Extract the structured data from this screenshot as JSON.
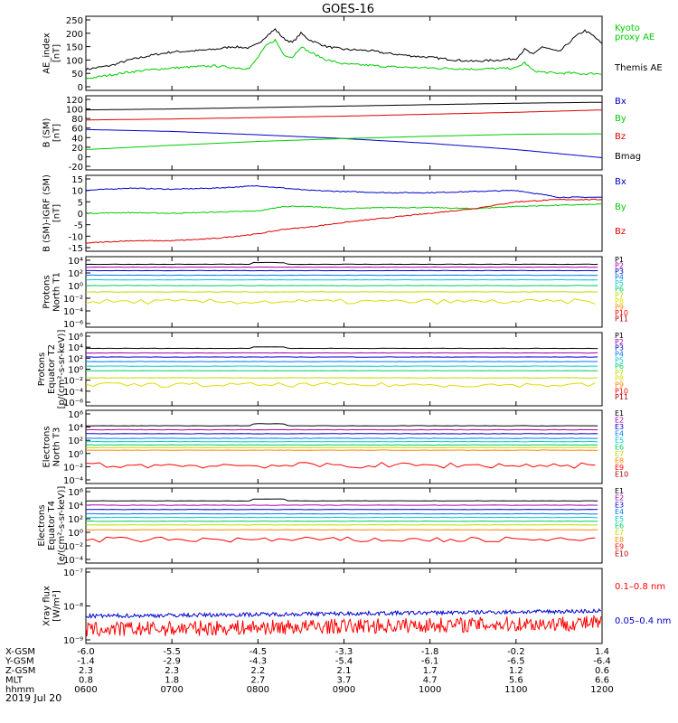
{
  "chart_data": {
    "type": "line",
    "title": "GOES-16",
    "date_label": "2019 Jul 20",
    "time_range": [
      "0600",
      "1200"
    ],
    "panels": [
      {
        "id": "ae",
        "ylabel": [
          "AE_index",
          "[nT]"
        ],
        "yticks": [
          "250",
          "200",
          "150",
          "100",
          "50",
          "0"
        ],
        "ylim": [
          0,
          250
        ],
        "legend": [
          {
            "label": "Kyoto",
            "color": "#00cc00"
          },
          {
            "label": "proxy AE",
            "color": "#00cc00"
          },
          {
            "label": "Themis AE",
            "color": "#000000"
          }
        ],
        "series": [
          {
            "name": "Themis AE",
            "color": "#000000",
            "x": [
              6.0,
              6.3,
              6.5,
              6.8,
              7.0,
              7.3,
              7.5,
              7.7,
              7.9,
              8.0,
              8.1,
              8.2,
              8.3,
              8.4,
              8.5,
              8.6,
              8.8,
              9.0,
              9.3,
              9.5,
              9.8,
              10.0,
              10.3,
              10.5,
              10.8,
              11.0,
              11.1,
              11.2,
              11.3,
              11.5,
              11.6,
              11.7,
              11.8,
              11.9,
              12.0
            ],
            "y": [
              65,
              80,
              100,
              120,
              130,
              135,
              140,
              150,
              145,
              160,
              190,
              215,
              180,
              165,
              200,
              175,
              150,
              140,
              135,
              125,
              115,
              110,
              100,
              95,
              100,
              105,
              140,
              120,
              150,
              130,
              160,
              190,
              210,
              190,
              160
            ]
          },
          {
            "name": "Kyoto proxy AE",
            "color": "#00cc00",
            "x": [
              6.0,
              6.3,
              6.5,
              6.8,
              7.0,
              7.3,
              7.5,
              7.7,
              7.9,
              8.0,
              8.1,
              8.2,
              8.3,
              8.4,
              8.5,
              8.6,
              8.8,
              9.0,
              9.3,
              9.5,
              9.8,
              10.0,
              10.3,
              10.5,
              10.8,
              11.0,
              11.1,
              11.2,
              11.3,
              11.5,
              11.6,
              11.7,
              11.8,
              11.9,
              12.0
            ],
            "y": [
              30,
              45,
              55,
              65,
              70,
              75,
              78,
              72,
              68,
              110,
              155,
              175,
              120,
              110,
              150,
              130,
              100,
              85,
              80,
              75,
              72,
              70,
              68,
              66,
              68,
              70,
              90,
              60,
              55,
              50,
              52,
              50,
              48,
              50,
              48
            ]
          }
        ]
      },
      {
        "id": "bsm",
        "ylabel": [
          "B (SM)",
          "[nT]"
        ],
        "yticks": [
          "120",
          "100",
          "80",
          "60",
          "40",
          "20",
          "0",
          "-20"
        ],
        "ylim": [
          -20,
          120
        ],
        "legend": [
          {
            "label": "Bx",
            "color": "#0000cc"
          },
          {
            "label": "By",
            "color": "#00cc00"
          },
          {
            "label": "Bz",
            "color": "#dd0000"
          },
          {
            "label": "Bmag",
            "color": "#000000"
          }
        ],
        "series": [
          {
            "name": "Bmag",
            "color": "#000000",
            "x": [
              6,
              7,
              8,
              9,
              10,
              11,
              12
            ],
            "y": [
              98,
              100,
              103,
              106,
              109,
              112,
              114
            ]
          },
          {
            "name": "Bz",
            "color": "#dd0000",
            "x": [
              6,
              7,
              8,
              9,
              10,
              11,
              12
            ],
            "y": [
              77,
              79,
              82,
              85,
              89,
              93,
              98
            ]
          },
          {
            "name": "Bx",
            "color": "#0000cc",
            "x": [
              6,
              7,
              8,
              9,
              10,
              11,
              12
            ],
            "y": [
              57,
              53,
              46,
              38,
              28,
              15,
              -2
            ]
          },
          {
            "name": "By",
            "color": "#00cc00",
            "x": [
              6,
              7,
              8,
              9,
              10,
              11,
              12
            ],
            "y": [
              15,
              24,
              32,
              38,
              43,
              47,
              48
            ]
          }
        ]
      },
      {
        "id": "bdiff",
        "ylabel": [
          "B (SM)-IGRF (SM)",
          "[nT]"
        ],
        "yticks": [
          "15",
          "10",
          "5",
          "0",
          "-5",
          "-10",
          "-15"
        ],
        "ylim": [
          -15,
          15
        ],
        "legend": [
          {
            "label": "Bx",
            "color": "#0000cc"
          },
          {
            "label": "By",
            "color": "#00cc00"
          },
          {
            "label": "Bz",
            "color": "#dd0000"
          }
        ],
        "series": [
          {
            "name": "Bx",
            "color": "#0000cc",
            "x": [
              6,
              6.5,
              7,
              7.5,
              8,
              8.3,
              8.6,
              9,
              9.5,
              10,
              10.5,
              11,
              11.5,
              12
            ],
            "y": [
              10,
              11,
              10.5,
              11,
              12,
              11,
              10,
              9.5,
              9,
              9,
              9.5,
              10,
              7,
              7
            ]
          },
          {
            "name": "By",
            "color": "#00cc00",
            "x": [
              6,
              6.5,
              7,
              7.5,
              8,
              8.3,
              8.6,
              9,
              9.5,
              10,
              10.5,
              11,
              11.5,
              12
            ],
            "y": [
              0,
              0.3,
              0,
              0.5,
              1,
              3,
              3,
              2,
              2.5,
              2.5,
              2,
              3,
              3.5,
              4
            ]
          },
          {
            "name": "Bz",
            "color": "#dd0000",
            "x": [
              6,
              6.5,
              7,
              7.5,
              8,
              8.3,
              8.6,
              9,
              9.5,
              10,
              10.5,
              11,
              11.5,
              12
            ],
            "y": [
              -13,
              -12,
              -12,
              -11,
              -9,
              -7,
              -6,
              -4,
              -2,
              0,
              2,
              5,
              6,
              6
            ]
          }
        ]
      },
      {
        "id": "pt1",
        "ylabel": [
          "Protons",
          "North T1"
        ],
        "yticks": [
          "10⁴",
          "10²",
          "10⁰",
          "10⁻²",
          "10⁻⁴",
          "10⁻⁶"
        ],
        "ylim_log": [
          -7,
          4
        ],
        "legend": [
          {
            "label": "P1",
            "color": "#000000"
          },
          {
            "label": "P2",
            "color": "#aa00aa"
          },
          {
            "label": "P3",
            "color": "#0000cc"
          },
          {
            "label": "P4",
            "color": "#0077ff"
          },
          {
            "label": "P5",
            "color": "#00cccc"
          },
          {
            "label": "P6",
            "color": "#00cc66"
          },
          {
            "label": "P7",
            "color": "#bbdd00"
          },
          {
            "label": "P8",
            "color": "#dddd00"
          },
          {
            "label": "P9",
            "color": "#ff8800"
          },
          {
            "label": "P10",
            "color": "#ff0000"
          },
          {
            "label": "P11",
            "color": "#aa0000"
          }
        ],
        "levels_log10": [
          3.3,
          2.8,
          2.2,
          1.4,
          0.6,
          -0.4,
          -1.5,
          -3.2
        ]
      },
      {
        "id": "pt2",
        "ylabel": [
          "Protons",
          "Equator T2",
          "[p/(cm²-s-sr-keV)]"
        ],
        "yticks": [
          "10⁶",
          "10⁴",
          "10²",
          "10⁰",
          "10⁻²",
          "10⁻⁴",
          "10⁻⁶"
        ],
        "ylim_log": [
          -7,
          6
        ],
        "legend": [
          {
            "label": "P1",
            "color": "#000000"
          },
          {
            "label": "P2",
            "color": "#aa00aa"
          },
          {
            "label": "P3",
            "color": "#0000cc"
          },
          {
            "label": "P4",
            "color": "#0077ff"
          },
          {
            "label": "P5",
            "color": "#00cccc"
          },
          {
            "label": "P6",
            "color": "#00cc66"
          },
          {
            "label": "P7",
            "color": "#bbdd00"
          },
          {
            "label": "P8",
            "color": "#dddd00"
          },
          {
            "label": "P9",
            "color": "#ff8800"
          },
          {
            "label": "P10",
            "color": "#ff0000"
          },
          {
            "label": "P11",
            "color": "#aa0000"
          }
        ],
        "levels_log10": [
          3.6,
          2.7,
          1.9,
          1.0,
          0.1,
          -0.8,
          -2.2,
          -3.6
        ]
      },
      {
        "id": "et3",
        "ylabel": [
          "Electrons",
          "North T3"
        ],
        "yticks": [
          "10⁶",
          "10⁴",
          "10²",
          "10⁰",
          "10⁻²",
          "10⁻⁴"
        ],
        "ylim_log": [
          -4,
          6
        ],
        "legend": [
          {
            "label": "E1",
            "color": "#000000"
          },
          {
            "label": "E2",
            "color": "#aa00aa"
          },
          {
            "label": "E3",
            "color": "#0000cc"
          },
          {
            "label": "E4",
            "color": "#0077ff"
          },
          {
            "label": "E5",
            "color": "#00cccc"
          },
          {
            "label": "E6",
            "color": "#00cc66"
          },
          {
            "label": "E7",
            "color": "#bbdd00"
          },
          {
            "label": "E8",
            "color": "#ff8800"
          },
          {
            "label": "E9",
            "color": "#ff0000"
          },
          {
            "label": "E10",
            "color": "#aa0000"
          }
        ],
        "levels_log10": [
          4.2,
          3.6,
          3.0,
          2.3,
          1.8,
          1.3,
          0.9,
          0.5,
          -1.8
        ]
      },
      {
        "id": "et4",
        "ylabel": [
          "Electrons",
          "Equator T4",
          "[e/(cm²-s-sr-keV)]"
        ],
        "yticks": [
          "10⁶",
          "10⁴",
          "10²",
          "10⁰",
          "10⁻²",
          "10⁻⁴"
        ],
        "ylim_log": [
          -5,
          6
        ],
        "legend": [
          {
            "label": "E1",
            "color": "#000000"
          },
          {
            "label": "E2",
            "color": "#aa00aa"
          },
          {
            "label": "E3",
            "color": "#0000cc"
          },
          {
            "label": "E4",
            "color": "#0077ff"
          },
          {
            "label": "E5",
            "color": "#00cccc"
          },
          {
            "label": "E6",
            "color": "#00cc66"
          },
          {
            "label": "E7",
            "color": "#bbdd00"
          },
          {
            "label": "E8",
            "color": "#ff8800"
          },
          {
            "label": "E9",
            "color": "#ff0000"
          },
          {
            "label": "E10",
            "color": "#aa0000"
          }
        ],
        "levels_log10": [
          4.5,
          3.8,
          3.1,
          2.4,
          1.8,
          1.2,
          0.6,
          -0.2,
          -1.8
        ]
      },
      {
        "id": "xray",
        "ylabel": [
          "Xray flux",
          "[W/m²]"
        ],
        "yticks": [
          "10⁻⁷",
          "10⁻⁸",
          "10⁻⁹"
        ],
        "ylim_log": [
          -9,
          -7
        ],
        "legend": [
          {
            "label": "0.1–0.8 nm",
            "color": "#ff0000"
          },
          {
            "label": "0.05–0.4 nm",
            "color": "#0000cc"
          }
        ],
        "series": [
          {
            "name": "0.05-0.4 nm",
            "color": "#0000cc",
            "base_log10": -8.3,
            "end_log10": -8.15
          },
          {
            "name": "0.1-0.8 nm",
            "color": "#ff0000",
            "base_log10": -8.7,
            "end_log10": -8.5
          }
        ]
      }
    ],
    "xaxis": {
      "rows": [
        {
          "label": "X-GSM",
          "values": [
            "-6.0",
            "-5.5",
            "-4.5",
            "-3.3",
            "-1.8",
            "-0.2",
            "1.4"
          ]
        },
        {
          "label": "Y-GSM",
          "values": [
            "-1.4",
            "-2.9",
            "-4.3",
            "-5.4",
            "-6.1",
            "-6.5",
            "-6.4"
          ]
        },
        {
          "label": "Z-GSM",
          "values": [
            "2.3",
            "2.3",
            "2.2",
            "2.1",
            "1.7",
            "1.2",
            "0.6"
          ]
        },
        {
          "label": "MLT",
          "values": [
            "0.8",
            "1.8",
            "2.7",
            "3.7",
            "4.7",
            "5.6",
            "6.6"
          ]
        },
        {
          "label": "hhmm",
          "values": [
            "0600",
            "0700",
            "0800",
            "0900",
            "1000",
            "1100",
            "1200"
          ]
        }
      ]
    }
  }
}
